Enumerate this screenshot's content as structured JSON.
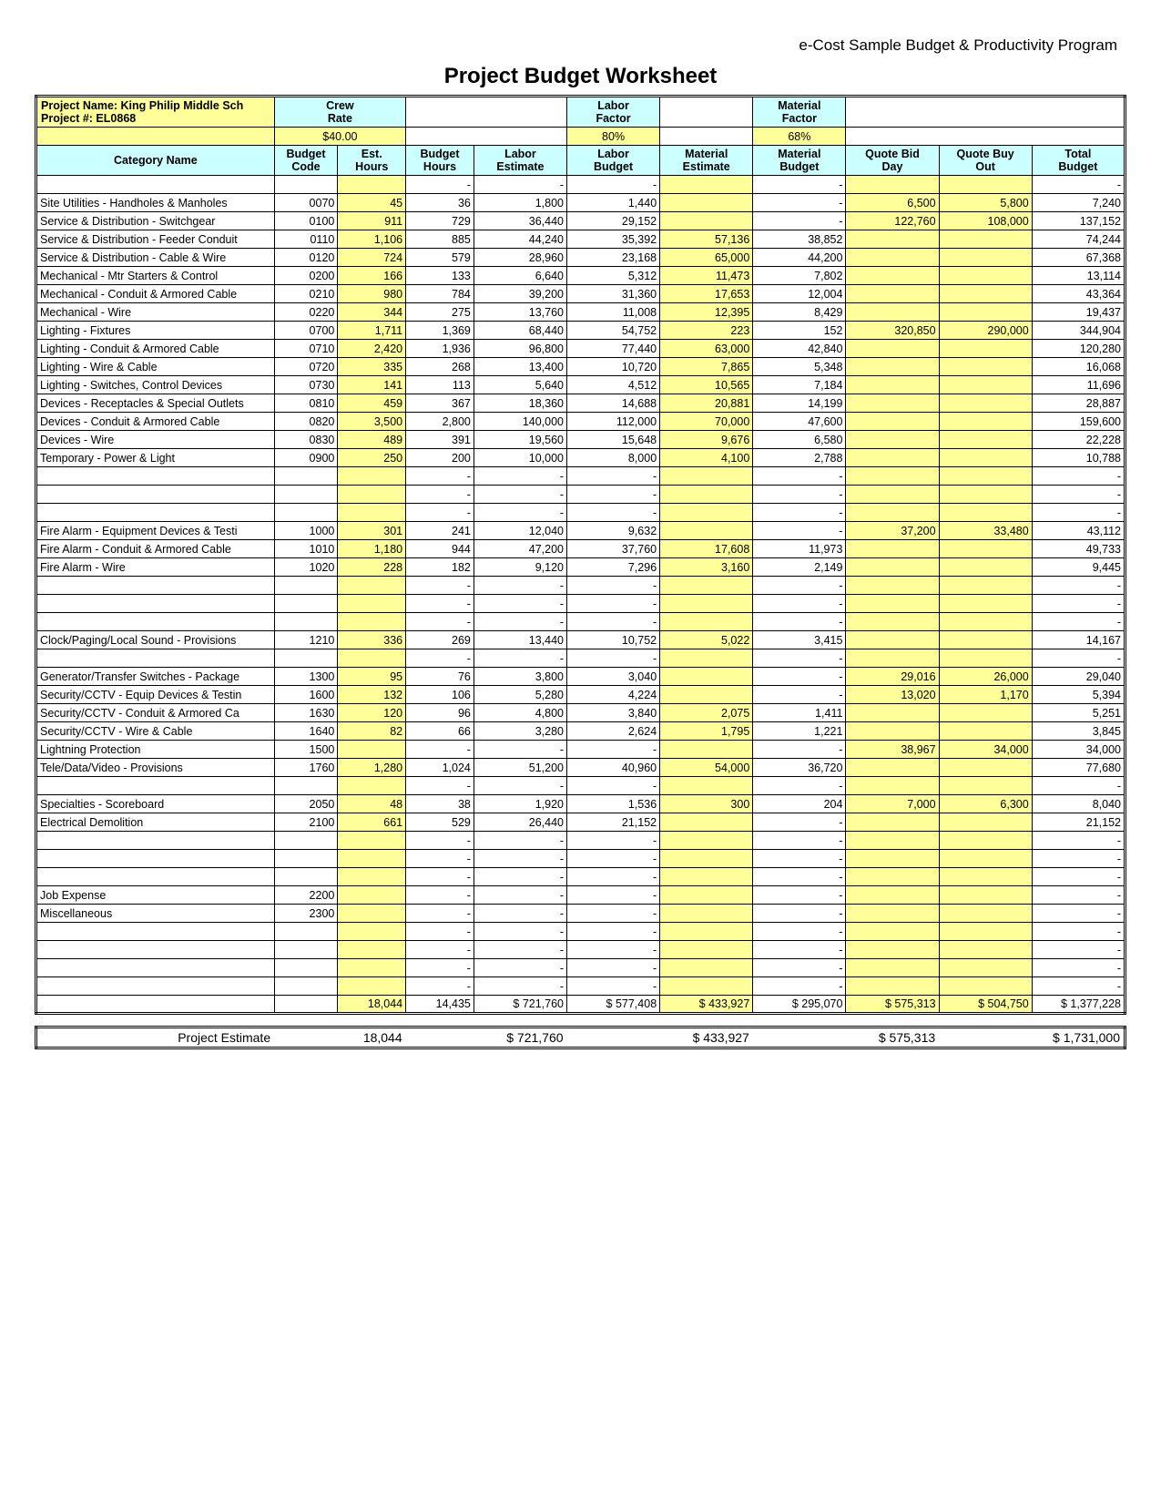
{
  "program_title": "e-Cost Sample Budget & Productivity Program",
  "main_title": "Project Budget Worksheet",
  "project_name_label": "Project Name: King Philip Middle Sch",
  "project_number_label": "Project #: EL0868",
  "crew_rate_label": "Crew Rate",
  "crew_rate_value": "$40.00",
  "labor_factor_label": "Labor Factor",
  "labor_factor_value": "80%",
  "material_factor_label": "Material Factor",
  "material_factor_value": "68%",
  "columns": [
    "Category Name",
    "Budget Code",
    "Est. Hours",
    "Budget Hours",
    "Labor Estimate",
    "Labor Budget",
    "Material Estimate",
    "Material Budget",
    "Quote Bid Day",
    "Quote Buy Out",
    "Total Budget"
  ],
  "rows": [
    {
      "name": "",
      "code": "",
      "est": "",
      "bud": "-",
      "lest": "-",
      "lbud": "-",
      "mest": "",
      "mbud": "-",
      "qbid": "",
      "qbuy": "",
      "tot": "-"
    },
    {
      "name": "Site Utilities - Handholes & Manholes",
      "code": "0070",
      "est": "45",
      "bud": "36",
      "lest": "1,800",
      "lbud": "1,440",
      "mest": "",
      "mbud": "-",
      "qbid": "6,500",
      "qbuy": "5,800",
      "tot": "7,240"
    },
    {
      "name": "Service & Distribution - Switchgear",
      "code": "0100",
      "est": "911",
      "bud": "729",
      "lest": "36,440",
      "lbud": "29,152",
      "mest": "",
      "mbud": "-",
      "qbid": "122,760",
      "qbuy": "108,000",
      "tot": "137,152"
    },
    {
      "name": "Service & Distribution - Feeder Conduit",
      "code": "0110",
      "est": "1,106",
      "bud": "885",
      "lest": "44,240",
      "lbud": "35,392",
      "mest": "57,136",
      "mbud": "38,852",
      "qbid": "",
      "qbuy": "",
      "tot": "74,244"
    },
    {
      "name": "Service & Distribution - Cable & Wire",
      "code": "0120",
      "est": "724",
      "bud": "579",
      "lest": "28,960",
      "lbud": "23,168",
      "mest": "65,000",
      "mbud": "44,200",
      "qbid": "",
      "qbuy": "",
      "tot": "67,368"
    },
    {
      "name": "Mechanical - Mtr Starters & Control",
      "code": "0200",
      "est": "166",
      "bud": "133",
      "lest": "6,640",
      "lbud": "5,312",
      "mest": "11,473",
      "mbud": "7,802",
      "qbid": "",
      "qbuy": "",
      "tot": "13,114"
    },
    {
      "name": "Mechanical - Conduit & Armored Cable",
      "code": "0210",
      "est": "980",
      "bud": "784",
      "lest": "39,200",
      "lbud": "31,360",
      "mest": "17,653",
      "mbud": "12,004",
      "qbid": "",
      "qbuy": "",
      "tot": "43,364"
    },
    {
      "name": "Mechanical - Wire",
      "code": "0220",
      "est": "344",
      "bud": "275",
      "lest": "13,760",
      "lbud": "11,008",
      "mest": "12,395",
      "mbud": "8,429",
      "qbid": "",
      "qbuy": "",
      "tot": "19,437"
    },
    {
      "name": "Lighting - Fixtures",
      "code": "0700",
      "est": "1,711",
      "bud": "1,369",
      "lest": "68,440",
      "lbud": "54,752",
      "mest": "223",
      "mbud": "152",
      "qbid": "320,850",
      "qbuy": "290,000",
      "tot": "344,904"
    },
    {
      "name": "Lighting - Conduit & Armored Cable",
      "code": "0710",
      "est": "2,420",
      "bud": "1,936",
      "lest": "96,800",
      "lbud": "77,440",
      "mest": "63,000",
      "mbud": "42,840",
      "qbid": "",
      "qbuy": "",
      "tot": "120,280"
    },
    {
      "name": "Lighting - Wire & Cable",
      "code": "0720",
      "est": "335",
      "bud": "268",
      "lest": "13,400",
      "lbud": "10,720",
      "mest": "7,865",
      "mbud": "5,348",
      "qbid": "",
      "qbuy": "",
      "tot": "16,068"
    },
    {
      "name": "Lighting - Switches, Control Devices",
      "code": "0730",
      "est": "141",
      "bud": "113",
      "lest": "5,640",
      "lbud": "4,512",
      "mest": "10,565",
      "mbud": "7,184",
      "qbid": "",
      "qbuy": "",
      "tot": "11,696"
    },
    {
      "name": "Devices - Receptacles & Special Outlets",
      "code": "0810",
      "est": "459",
      "bud": "367",
      "lest": "18,360",
      "lbud": "14,688",
      "mest": "20,881",
      "mbud": "14,199",
      "qbid": "",
      "qbuy": "",
      "tot": "28,887"
    },
    {
      "name": "Devices - Conduit & Armored Cable",
      "code": "0820",
      "est": "3,500",
      "bud": "2,800",
      "lest": "140,000",
      "lbud": "112,000",
      "mest": "70,000",
      "mbud": "47,600",
      "qbid": "",
      "qbuy": "",
      "tot": "159,600"
    },
    {
      "name": "Devices - Wire",
      "code": "0830",
      "est": "489",
      "bud": "391",
      "lest": "19,560",
      "lbud": "15,648",
      "mest": "9,676",
      "mbud": "6,580",
      "qbid": "",
      "qbuy": "",
      "tot": "22,228"
    },
    {
      "name": "Temporary - Power & Light",
      "code": "0900",
      "est": "250",
      "bud": "200",
      "lest": "10,000",
      "lbud": "8,000",
      "mest": "4,100",
      "mbud": "2,788",
      "qbid": "",
      "qbuy": "",
      "tot": "10,788"
    },
    {
      "name": "",
      "code": "",
      "est": "",
      "bud": "-",
      "lest": "-",
      "lbud": "-",
      "mest": "",
      "mbud": "-",
      "qbid": "",
      "qbuy": "",
      "tot": "-"
    },
    {
      "name": "",
      "code": "",
      "est": "",
      "bud": "-",
      "lest": "-",
      "lbud": "-",
      "mest": "",
      "mbud": "-",
      "qbid": "",
      "qbuy": "",
      "tot": "-"
    },
    {
      "name": "",
      "code": "",
      "est": "",
      "bud": "-",
      "lest": "-",
      "lbud": "-",
      "mest": "",
      "mbud": "-",
      "qbid": "",
      "qbuy": "",
      "tot": "-"
    },
    {
      "name": "Fire Alarm - Equipment Devices & Testi",
      "code": "1000",
      "est": "301",
      "bud": "241",
      "lest": "12,040",
      "lbud": "9,632",
      "mest": "",
      "mbud": "-",
      "qbid": "37,200",
      "qbuy": "33,480",
      "tot": "43,112"
    },
    {
      "name": "Fire Alarm - Conduit & Armored Cable",
      "code": "1010",
      "est": "1,180",
      "bud": "944",
      "lest": "47,200",
      "lbud": "37,760",
      "mest": "17,608",
      "mbud": "11,973",
      "qbid": "",
      "qbuy": "",
      "tot": "49,733"
    },
    {
      "name": "Fire Alarm - Wire",
      "code": "1020",
      "est": "228",
      "bud": "182",
      "lest": "9,120",
      "lbud": "7,296",
      "mest": "3,160",
      "mbud": "2,149",
      "qbid": "",
      "qbuy": "",
      "tot": "9,445"
    },
    {
      "name": "",
      "code": "",
      "est": "",
      "bud": "-",
      "lest": "-",
      "lbud": "-",
      "mest": "",
      "mbud": "-",
      "qbid": "",
      "qbuy": "",
      "tot": "-"
    },
    {
      "name": "",
      "code": "",
      "est": "",
      "bud": "-",
      "lest": "-",
      "lbud": "-",
      "mest": "",
      "mbud": "-",
      "qbid": "",
      "qbuy": "",
      "tot": "-"
    },
    {
      "name": "",
      "code": "",
      "est": "",
      "bud": "-",
      "lest": "-",
      "lbud": "-",
      "mest": "",
      "mbud": "-",
      "qbid": "",
      "qbuy": "",
      "tot": "-"
    },
    {
      "name": "Clock/Paging/Local Sound - Provisions",
      "code": "1210",
      "est": "336",
      "bud": "269",
      "lest": "13,440",
      "lbud": "10,752",
      "mest": "5,022",
      "mbud": "3,415",
      "qbid": "",
      "qbuy": "",
      "tot": "14,167"
    },
    {
      "name": "",
      "code": "",
      "est": "",
      "bud": "-",
      "lest": "-",
      "lbud": "-",
      "mest": "",
      "mbud": "-",
      "qbid": "",
      "qbuy": "",
      "tot": "-"
    },
    {
      "name": "Generator/Transfer Switches - Package",
      "code": "1300",
      "est": "95",
      "bud": "76",
      "lest": "3,800",
      "lbud": "3,040",
      "mest": "",
      "mbud": "-",
      "qbid": "29,016",
      "qbuy": "26,000",
      "tot": "29,040"
    },
    {
      "name": "Security/CCTV - Equip Devices & Testin",
      "code": "1600",
      "est": "132",
      "bud": "106",
      "lest": "5,280",
      "lbud": "4,224",
      "mest": "",
      "mbud": "-",
      "qbid": "13,020",
      "qbuy": "1,170",
      "tot": "5,394"
    },
    {
      "name": "Security/CCTV - Conduit & Armored Ca",
      "code": "1630",
      "est": "120",
      "bud": "96",
      "lest": "4,800",
      "lbud": "3,840",
      "mest": "2,075",
      "mbud": "1,411",
      "qbid": "",
      "qbuy": "",
      "tot": "5,251"
    },
    {
      "name": "Security/CCTV - Wire & Cable",
      "code": "1640",
      "est": "82",
      "bud": "66",
      "lest": "3,280",
      "lbud": "2,624",
      "mest": "1,795",
      "mbud": "1,221",
      "qbid": "",
      "qbuy": "",
      "tot": "3,845"
    },
    {
      "name": "Lightning Protection",
      "code": "1500",
      "est": "",
      "bud": "-",
      "lest": "-",
      "lbud": "-",
      "mest": "",
      "mbud": "-",
      "qbid": "38,967",
      "qbuy": "34,000",
      "tot": "34,000"
    },
    {
      "name": "Tele/Data/Video - Provisions",
      "code": "1760",
      "est": "1,280",
      "bud": "1,024",
      "lest": "51,200",
      "lbud": "40,960",
      "mest": "54,000",
      "mbud": "36,720",
      "qbid": "",
      "qbuy": "",
      "tot": "77,680"
    },
    {
      "name": "",
      "code": "",
      "est": "",
      "bud": "-",
      "lest": "-",
      "lbud": "-",
      "mest": "",
      "mbud": "-",
      "qbid": "",
      "qbuy": "",
      "tot": "-"
    },
    {
      "name": "Specialties - Scoreboard",
      "code": "2050",
      "est": "48",
      "bud": "38",
      "lest": "1,920",
      "lbud": "1,536",
      "mest": "300",
      "mbud": "204",
      "qbid": "7,000",
      "qbuy": "6,300",
      "tot": "8,040"
    },
    {
      "name": "Electrical Demolition",
      "code": "2100",
      "est": "661",
      "bud": "529",
      "lest": "26,440",
      "lbud": "21,152",
      "mest": "",
      "mbud": "-",
      "qbid": "",
      "qbuy": "",
      "tot": "21,152"
    },
    {
      "name": "",
      "code": "",
      "est": "",
      "bud": "-",
      "lest": "-",
      "lbud": "-",
      "mest": "",
      "mbud": "-",
      "qbid": "",
      "qbuy": "",
      "tot": "-"
    },
    {
      "name": "",
      "code": "",
      "est": "",
      "bud": "-",
      "lest": "-",
      "lbud": "-",
      "mest": "",
      "mbud": "-",
      "qbid": "",
      "qbuy": "",
      "tot": "-"
    },
    {
      "name": "",
      "code": "",
      "est": "",
      "bud": "-",
      "lest": "-",
      "lbud": "-",
      "mest": "",
      "mbud": "-",
      "qbid": "",
      "qbuy": "",
      "tot": "-"
    },
    {
      "name": "Job Expense",
      "code": "2200",
      "est": "",
      "bud": "-",
      "lest": "-",
      "lbud": "-",
      "mest": "",
      "mbud": "-",
      "qbid": "",
      "qbuy": "",
      "tot": "-"
    },
    {
      "name": "Miscellaneous",
      "code": "2300",
      "est": "",
      "bud": "-",
      "lest": "-",
      "lbud": "-",
      "mest": "",
      "mbud": "-",
      "qbid": "",
      "qbuy": "",
      "tot": "-"
    },
    {
      "name": "",
      "code": "",
      "est": "",
      "bud": "-",
      "lest": "-",
      "lbud": "-",
      "mest": "",
      "mbud": "-",
      "qbid": "",
      "qbuy": "",
      "tot": "-"
    },
    {
      "name": "",
      "code": "",
      "est": "",
      "bud": "-",
      "lest": "-",
      "lbud": "-",
      "mest": "",
      "mbud": "-",
      "qbid": "",
      "qbuy": "",
      "tot": "-"
    },
    {
      "name": "",
      "code": "",
      "est": "",
      "bud": "-",
      "lest": "-",
      "lbud": "-",
      "mest": "",
      "mbud": "-",
      "qbid": "",
      "qbuy": "",
      "tot": "-"
    },
    {
      "name": "",
      "code": "",
      "est": "",
      "bud": "-",
      "lest": "-",
      "lbud": "-",
      "mest": "",
      "mbud": "-",
      "qbid": "",
      "qbuy": "",
      "tot": "-"
    }
  ],
  "totals": {
    "est": "18,044",
    "bud": "14,435",
    "lest": "$ 721,760",
    "lbud": "$ 577,408",
    "mest": "$ 433,927",
    "mbud": "$ 295,070",
    "qbid": "$ 575,313",
    "qbuy": "$ 504,750",
    "tot": "$ 1,377,228"
  },
  "footer": {
    "label": "Project Estimate",
    "est": "18,044",
    "lest": "$ 721,760",
    "mest": "$ 433,927",
    "qbid": "$ 575,313",
    "tot": "$ 1,731,000"
  },
  "colors": {
    "yellow": "#ffff99",
    "cyan": "#ccffff"
  }
}
